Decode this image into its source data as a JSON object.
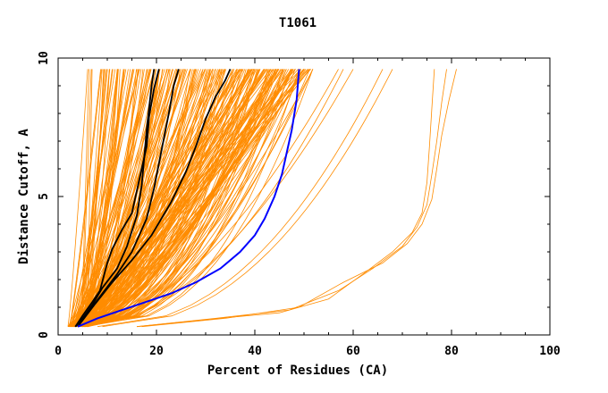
{
  "chart_data": {
    "type": "line",
    "title": "T1061",
    "xlabel": "Percent of Residues (CA)",
    "ylabel": "Distance Cutoff, A",
    "xlim": [
      0,
      100
    ],
    "ylim": [
      0,
      10
    ],
    "x_ticks": [
      "0",
      "20",
      "40",
      "60",
      "80",
      "100"
    ],
    "y_ticks": [
      "0",
      "5",
      "10"
    ],
    "grid": false,
    "colors": {
      "bundle": "#ff8c00",
      "highlight": "#000000",
      "best": "#0000ff",
      "axis": "#000000"
    },
    "highlight_series": [
      {
        "x": [
          3.5,
          5,
          7,
          8.5,
          10,
          11,
          13,
          15,
          16,
          17,
          18,
          18.5,
          19.5,
          20.5
        ],
        "y": [
          0.3,
          0.7,
          1.2,
          1.6,
          2.6,
          3.1,
          3.8,
          4.4,
          5.2,
          6.0,
          6.8,
          7.9,
          8.9,
          9.6
        ]
      },
      {
        "x": [
          3.5,
          5,
          7,
          9,
          12,
          14,
          16,
          17,
          17.5,
          18,
          18.5,
          19,
          19.5
        ],
        "y": [
          0.3,
          0.6,
          1.1,
          1.7,
          2.4,
          3.2,
          4.3,
          5.4,
          6.4,
          7.4,
          8.2,
          9.0,
          9.6
        ]
      },
      {
        "x": [
          3.5,
          6,
          9,
          12,
          15,
          18,
          19.5,
          20.5,
          21.5,
          22.5,
          23.5,
          24.5
        ],
        "y": [
          0.3,
          0.8,
          1.5,
          2.2,
          3.0,
          4.2,
          5.3,
          6.2,
          7.1,
          8.0,
          9.0,
          9.6
        ]
      },
      {
        "x": [
          4,
          7,
          11,
          15,
          19,
          23,
          26,
          28,
          30,
          32,
          34,
          35
        ],
        "y": [
          0.3,
          1.0,
          1.9,
          2.7,
          3.6,
          4.8,
          5.9,
          6.8,
          7.8,
          8.6,
          9.2,
          9.6
        ]
      }
    ],
    "best_series": {
      "x": [
        4,
        8,
        13,
        18,
        23,
        28,
        33,
        37,
        40,
        42,
        44,
        45.5,
        46.5,
        47.5,
        48.5,
        49
      ],
      "y": [
        0.3,
        0.6,
        0.9,
        1.2,
        1.5,
        1.9,
        2.4,
        3.0,
        3.6,
        4.2,
        5.0,
        5.8,
        6.6,
        7.4,
        8.5,
        9.6
      ]
    }
  }
}
